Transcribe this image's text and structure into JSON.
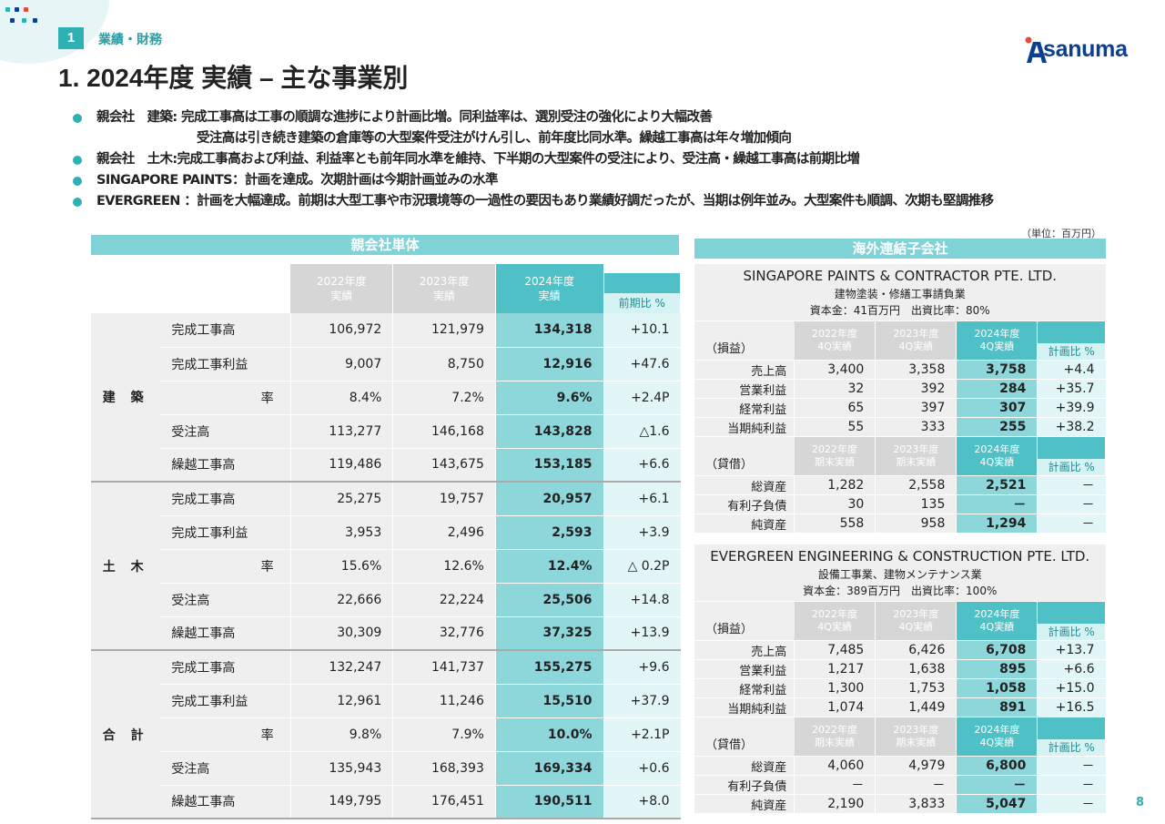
{
  "header": {
    "section_number": "1",
    "section_label": "業績・財務",
    "title": "1. 2024年度 実績 – 主な事業別",
    "logo_text": "sanuma"
  },
  "bullets": [
    "親会社　建築: 完成工事高は工事の順調な進捗により計画比増。同利益率は、選別受注の強化により大幅改善",
    "受注高は引き続き建築の倉庫等の大型案件受注がけん引し、前年度比同水準。繰越工事高は年々増加傾向",
    "親会社　土木:完成工事高および利益、利益率とも前年同水準を維持、下半期の大型案件の受注により、受注高・繰越工事高は前期比増",
    "SINGAPORE PAINTS：計画を達成。次期計画は今期計画並みの水準",
    "EVERGREEN ：計画を大幅達成。前期は大型工事や市況環境等の一過性の要因もあり業績好調だったが、当期は例年並み。大型案件も順調、次期も堅調推移"
  ],
  "unit": "（単位：百万円）",
  "left": {
    "title": "親会社単体",
    "headers": {
      "y2022": [
        "2022年度",
        "実績"
      ],
      "y2023": [
        "2023年度",
        "実績"
      ],
      "y2024": [
        "2024年度",
        "実績"
      ],
      "yoy": "前期比 %"
    },
    "groups": [
      {
        "name": "建 築",
        "rows": [
          {
            "label": "完成工事高",
            "v": [
              "106,972",
              "121,979",
              "134,318",
              "+10.1"
            ]
          },
          {
            "label": "完成工事利益",
            "v": [
              "9,007",
              "8,750",
              "12,916",
              "+47.6"
            ]
          },
          {
            "label": "率",
            "v": [
              "8.4%",
              "7.2%",
              "9.6%",
              "+2.4P"
            ]
          },
          {
            "label": "受注高",
            "v": [
              "113,277",
              "146,168",
              "143,828",
              "△1.6"
            ]
          },
          {
            "label": "繰越工事高",
            "v": [
              "119,486",
              "143,675",
              "153,185",
              "+6.6"
            ]
          }
        ]
      },
      {
        "name": "土 木",
        "rows": [
          {
            "label": "完成工事高",
            "v": [
              "25,275",
              "19,757",
              "20,957",
              "+6.1"
            ]
          },
          {
            "label": "完成工事利益",
            "v": [
              "3,953",
              "2,496",
              "2,593",
              "+3.9"
            ]
          },
          {
            "label": "率",
            "v": [
              "15.6%",
              "12.6%",
              "12.4%",
              "△ 0.2P"
            ]
          },
          {
            "label": "受注高",
            "v": [
              "22,666",
              "22,224",
              "25,506",
              "+14.8"
            ]
          },
          {
            "label": "繰越工事高",
            "v": [
              "30,309",
              "32,776",
              "37,325",
              "+13.9"
            ]
          }
        ]
      },
      {
        "name": "合 計",
        "rows": [
          {
            "label": "完成工事高",
            "v": [
              "132,247",
              "141,737",
              "155,275",
              "+9.6"
            ]
          },
          {
            "label": "完成工事利益",
            "v": [
              "12,961",
              "11,246",
              "15,510",
              "+37.9"
            ]
          },
          {
            "label": "率",
            "v": [
              "9.8%",
              "7.9%",
              "10.0%",
              "+2.1P"
            ]
          },
          {
            "label": "受注高",
            "v": [
              "135,943",
              "168,393",
              "169,334",
              "+0.6"
            ]
          },
          {
            "label": "繰越工事高",
            "v": [
              "149,795",
              "176,451",
              "190,511",
              "+8.0"
            ]
          }
        ]
      }
    ]
  },
  "right": {
    "title": "海外連結子会社",
    "companies": [
      {
        "name": "SINGAPORE PAINTS & CONTRACTOR PTE. LTD.",
        "business": "建物塗装・修繕工事請負業",
        "capital": "資本金：41百万円　出資比率：80%",
        "pl_label": "（損益）",
        "pl_headers": [
          [
            "2022年度",
            "4Q実績"
          ],
          [
            "2023年度",
            "4Q実績"
          ],
          [
            "2024年度",
            "4Q実績"
          ]
        ],
        "plan_label": "計画比 %",
        "pl_rows": [
          {
            "label": "売上高",
            "v": [
              "3,400",
              "3,358",
              "3,758",
              "+4.4"
            ]
          },
          {
            "label": "営業利益",
            "v": [
              "32",
              "392",
              "284",
              "+35.7"
            ]
          },
          {
            "label": "経常利益",
            "v": [
              "65",
              "397",
              "307",
              "+39.9"
            ]
          },
          {
            "label": "当期純利益",
            "v": [
              "55",
              "333",
              "255",
              "+38.2"
            ]
          }
        ],
        "bs_label": "（貸借）",
        "bs_headers": [
          [
            "2022年度",
            "期末実績"
          ],
          [
            "2023年度",
            "期末実績"
          ],
          [
            "2024年度",
            "4Q実績"
          ]
        ],
        "bs_rows": [
          {
            "label": "総資産",
            "v": [
              "1,282",
              "2,558",
              "2,521",
              "－"
            ]
          },
          {
            "label": "有利子負債",
            "v": [
              "30",
              "135",
              "－",
              "－"
            ]
          },
          {
            "label": "純資産",
            "v": [
              "558",
              "958",
              "1,294",
              "－"
            ]
          }
        ]
      },
      {
        "name": "EVERGREEN ENGINEERING & CONSTRUCTION PTE. LTD.",
        "business": "設備工事業、建物メンテナンス業",
        "capital": "資本金：389百万円　出資比率：100%",
        "pl_label": "（損益）",
        "pl_headers": [
          [
            "2022年度",
            "4Q実績"
          ],
          [
            "2023年度",
            "4Q実績"
          ],
          [
            "2024年度",
            "4Q実績"
          ]
        ],
        "plan_label": "計画比 %",
        "pl_rows": [
          {
            "label": "売上高",
            "v": [
              "7,485",
              "6,426",
              "6,708",
              "+13.7"
            ]
          },
          {
            "label": "営業利益",
            "v": [
              "1,217",
              "1,638",
              "895",
              "+6.6"
            ]
          },
          {
            "label": "経常利益",
            "v": [
              "1,300",
              "1,753",
              "1,058",
              "+15.0"
            ]
          },
          {
            "label": "当期純利益",
            "v": [
              "1,074",
              "1,449",
              "891",
              "+16.5"
            ]
          }
        ],
        "bs_label": "（貸借）",
        "bs_headers": [
          [
            "2022年度",
            "期末実績"
          ],
          [
            "2023年度",
            "期末実績"
          ],
          [
            "2024年度",
            "4Q実績"
          ]
        ],
        "bs_rows": [
          {
            "label": "総資産",
            "v": [
              "4,060",
              "4,979",
              "6,800",
              "－"
            ]
          },
          {
            "label": "有利子負債",
            "v": [
              "－",
              "－",
              "－",
              "－"
            ]
          },
          {
            "label": "純資産",
            "v": [
              "2,190",
              "3,833",
              "5,047",
              "－"
            ]
          }
        ]
      }
    ]
  },
  "page_number": "8",
  "colors": {
    "accent": "#2fb1b3",
    "header_bar": "#7fd2d6",
    "current_col": "#8dd6da",
    "logo": "#0d3f8f"
  }
}
